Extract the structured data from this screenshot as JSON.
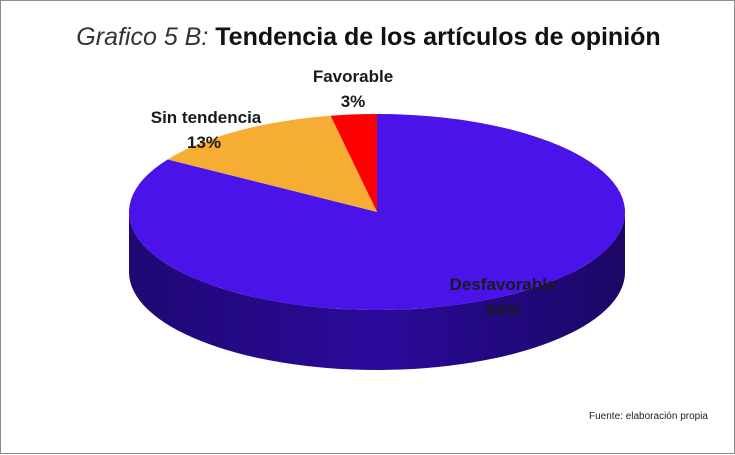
{
  "chart": {
    "title_prefix": "Grafico 5 B:",
    "title_main": "Tendencia de los artículos de opinión",
    "source_note": "Fuente: elaboración propia"
  },
  "chart_data": {
    "type": "pie",
    "title": "Grafico 5 B: Tendencia de los artículos de opinión",
    "style": "3d",
    "slices": [
      {
        "label": "Favorable",
        "value": 3,
        "percent_label": "3%",
        "color": "#ff0000",
        "side_color": "#b00000"
      },
      {
        "label": "Sin tendencia",
        "value": 13,
        "percent_label": "13%",
        "color": "#f5ad33",
        "side_color": "#c07a12"
      },
      {
        "label": "Desfavorable",
        "value": 84,
        "percent_label": "84%",
        "color": "#4a13ea",
        "side_color": "#2a0a9a"
      }
    ],
    "legend": false
  }
}
